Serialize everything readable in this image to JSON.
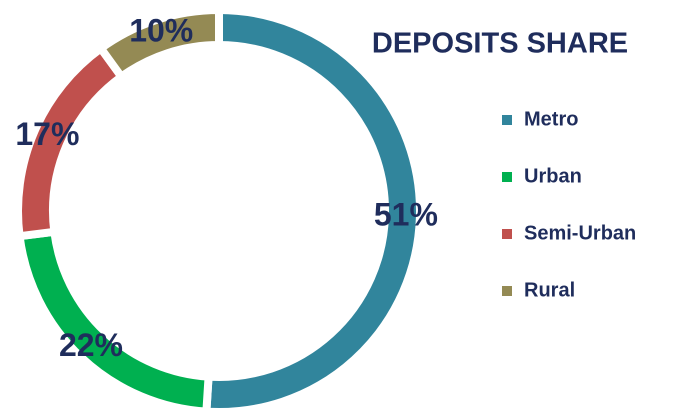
{
  "chart_data": {
    "type": "pie",
    "title": "DEPOSITS SHARE",
    "series": [
      {
        "name": "Metro",
        "color": "#31859c",
        "values": [
          51
        ],
        "value_labels": [
          "51%"
        ]
      },
      {
        "name": "Urban",
        "color": "#00b050",
        "values": [
          22
        ],
        "value_labels": [
          "22%"
        ]
      },
      {
        "name": "Semi-Urban",
        "color": "#c0504d",
        "values": [
          17
        ],
        "value_labels": [
          "17%"
        ]
      },
      {
        "name": "Rural",
        "color": "#948a54",
        "values": [
          10
        ],
        "value_labels": [
          "10%"
        ]
      }
    ],
    "legend": "right"
  }
}
